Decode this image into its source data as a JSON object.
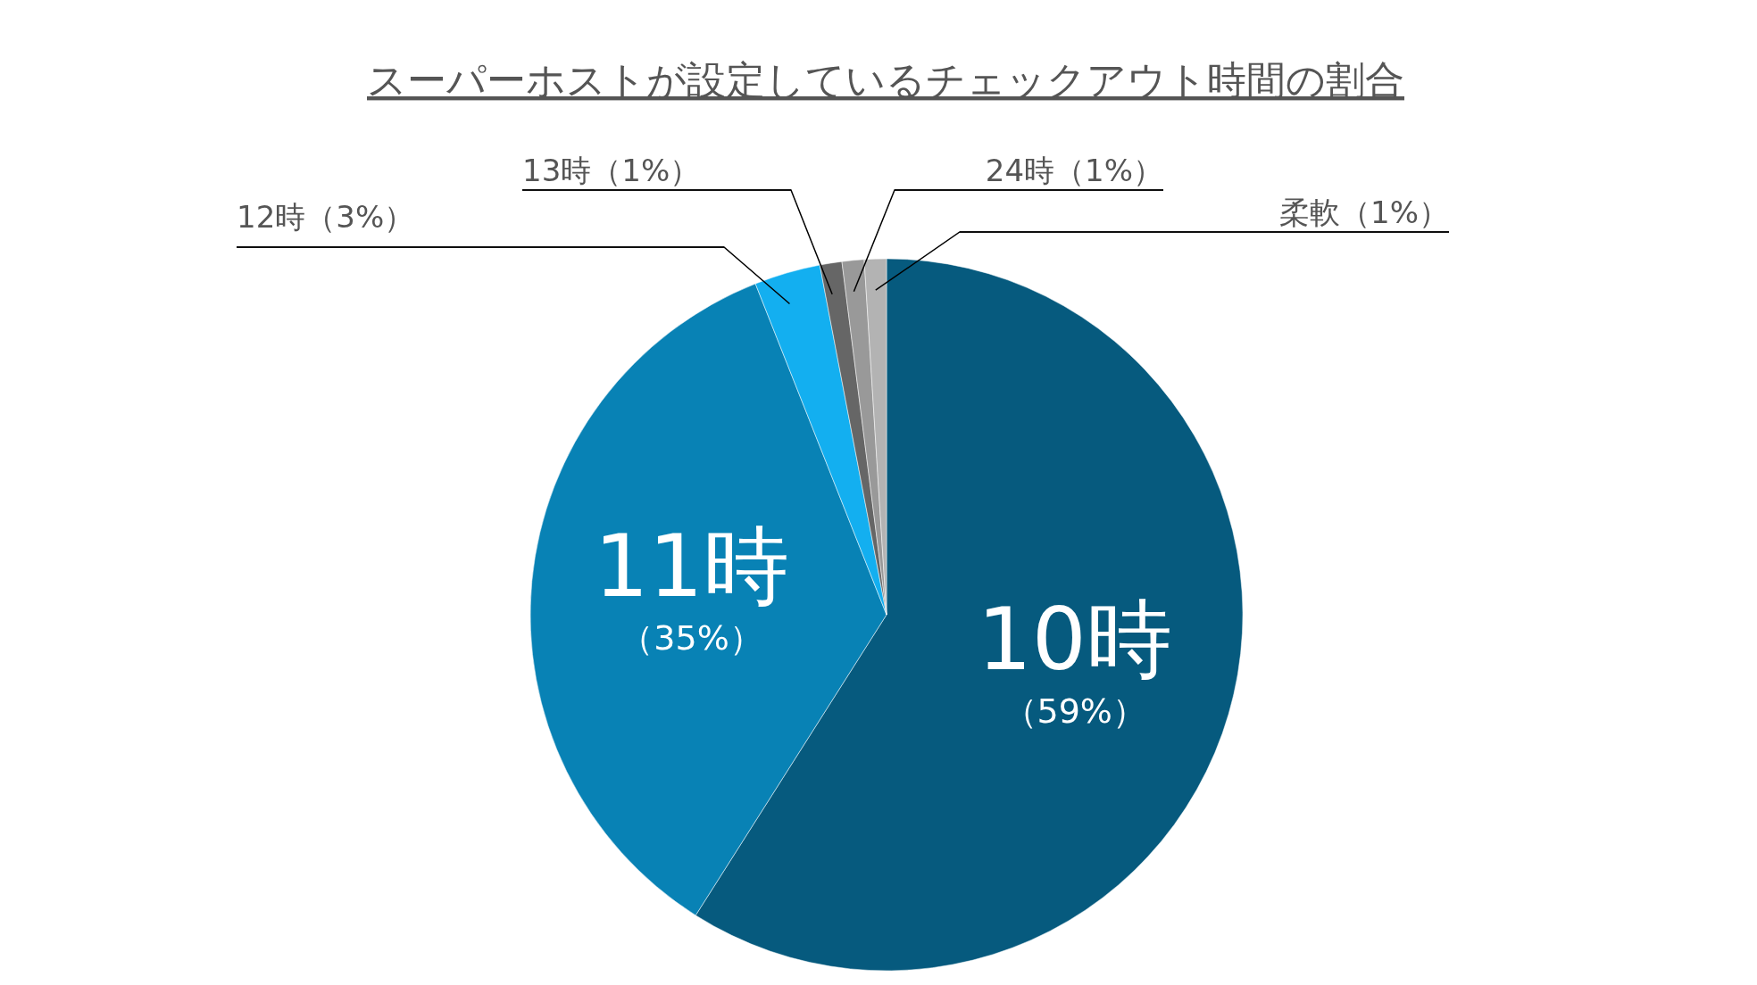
{
  "chart_data": {
    "type": "pie",
    "title": "スーパーホストが設定しているチェックアウト時間の割合",
    "categories": [
      "10時",
      "11時",
      "12時",
      "13時",
      "24時",
      "柔軟"
    ],
    "values": [
      59,
      35,
      3,
      1,
      1,
      1
    ],
    "value_labels": [
      "（59%）",
      "（35%）",
      "（3%）",
      "（1%）",
      "（1%）",
      "（1%）"
    ],
    "colors": [
      "#065a7e",
      "#0882b5",
      "#13aff0",
      "#666666",
      "#999999",
      "#b3b3b3"
    ]
  }
}
